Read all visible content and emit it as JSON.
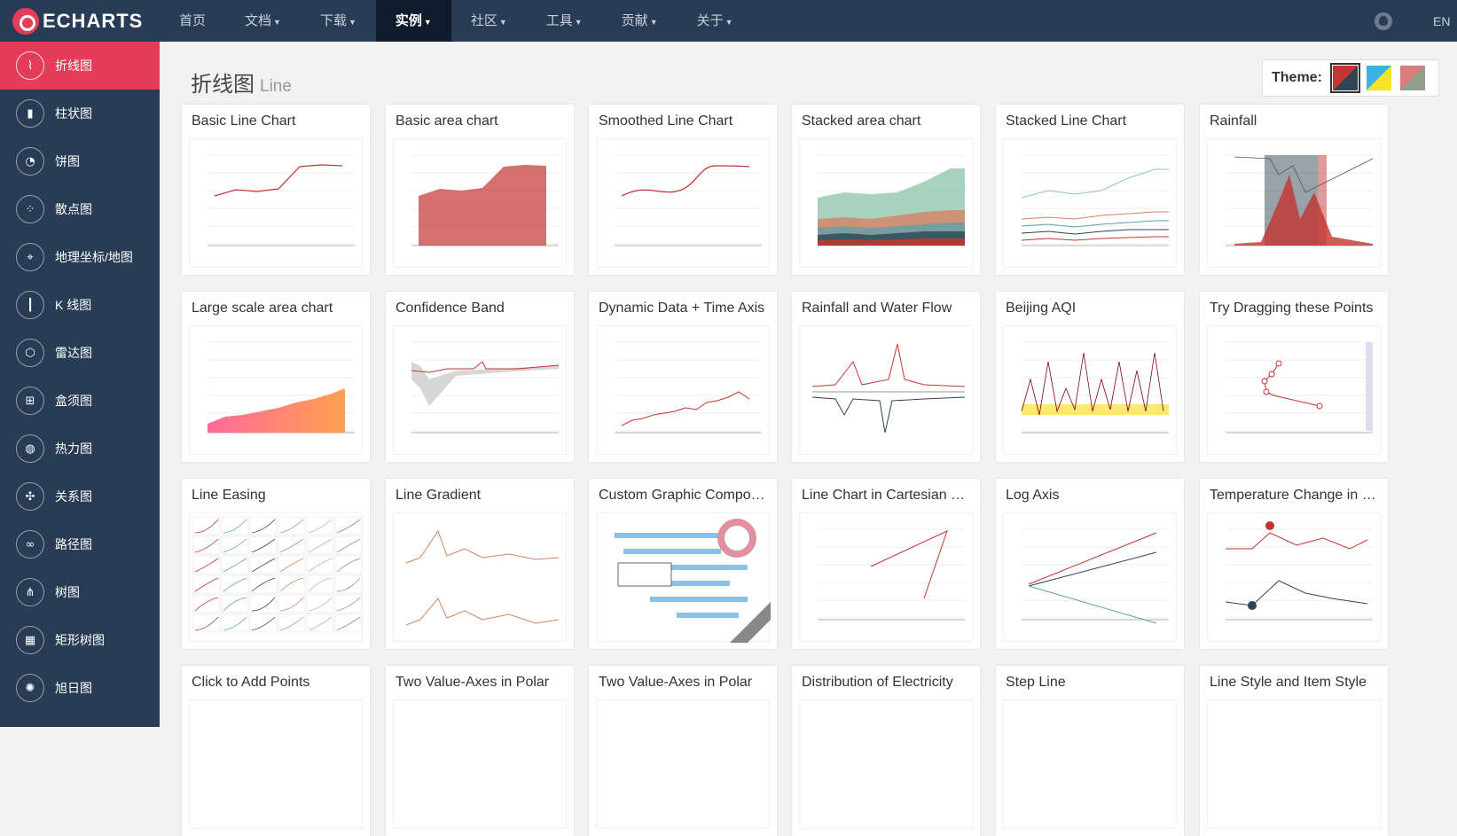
{
  "nav": {
    "logo": "ECHARTS",
    "items": [
      {
        "label": "首页",
        "caret": false
      },
      {
        "label": "文档",
        "caret": true
      },
      {
        "label": "下载",
        "caret": true
      },
      {
        "label": "实例",
        "caret": true,
        "active": true
      },
      {
        "label": "社区",
        "caret": true
      },
      {
        "label": "工具",
        "caret": true
      },
      {
        "label": "贡献",
        "caret": true
      },
      {
        "label": "关于",
        "caret": true
      }
    ],
    "lang": "EN"
  },
  "sidebar": {
    "items": [
      {
        "label": "折线图",
        "icon": "line-chart-icon",
        "active": true
      },
      {
        "label": "柱状图",
        "icon": "bar-chart-icon"
      },
      {
        "label": "饼图",
        "icon": "pie-chart-icon"
      },
      {
        "label": "散点图",
        "icon": "scatter-chart-icon"
      },
      {
        "label": "地理坐标/地图",
        "icon": "map-icon"
      },
      {
        "label": "K 线图",
        "icon": "candlestick-icon"
      },
      {
        "label": "雷达图",
        "icon": "radar-icon"
      },
      {
        "label": "盒须图",
        "icon": "boxplot-icon"
      },
      {
        "label": "热力图",
        "icon": "heatmap-icon"
      },
      {
        "label": "关系图",
        "icon": "graph-icon"
      },
      {
        "label": "路径图",
        "icon": "lines-icon"
      },
      {
        "label": "树图",
        "icon": "tree-icon"
      },
      {
        "label": "矩形树图",
        "icon": "treemap-icon"
      },
      {
        "label": "旭日图",
        "icon": "sunburst-icon"
      }
    ]
  },
  "main": {
    "title": "折线图",
    "subtitle": "Line",
    "theme_label": "Theme:",
    "cards": [
      {
        "title": "Basic Line Chart",
        "kind": "line"
      },
      {
        "title": "Basic area chart",
        "kind": "area"
      },
      {
        "title": "Smoothed Line Chart",
        "kind": "smooth"
      },
      {
        "title": "Stacked area chart",
        "kind": "stackarea"
      },
      {
        "title": "Stacked Line Chart",
        "kind": "stackline"
      },
      {
        "title": "Rainfall",
        "kind": "rain"
      },
      {
        "title": "Large scale area chart",
        "kind": "large"
      },
      {
        "title": "Confidence Band",
        "kind": "band"
      },
      {
        "title": "Dynamic Data + Time Axis",
        "kind": "dynamic"
      },
      {
        "title": "Rainfall and Water Flow",
        "kind": "flow"
      },
      {
        "title": "Beijing AQI",
        "kind": "aqi"
      },
      {
        "title": "Try Dragging these Points",
        "kind": "drag"
      },
      {
        "title": "Line Easing",
        "kind": "easing"
      },
      {
        "title": "Line Gradient",
        "kind": "gradient"
      },
      {
        "title": "Custom Graphic Compo…",
        "kind": "graphic"
      },
      {
        "title": "Line Chart in Cartesian …",
        "kind": "cartesian"
      },
      {
        "title": "Log Axis",
        "kind": "log"
      },
      {
        "title": "Temperature Change in …",
        "kind": "temp"
      },
      {
        "title": "Click to Add Points",
        "kind": "blank"
      },
      {
        "title": "Two Value-Axes in Polar",
        "kind": "blank"
      },
      {
        "title": "Two Value-Axes in Polar",
        "kind": "blank"
      },
      {
        "title": "Distribution of Electricity",
        "kind": "blank"
      },
      {
        "title": "Step Line",
        "kind": "blank"
      },
      {
        "title": "Line Style and Item Style",
        "kind": "blank"
      }
    ]
  }
}
